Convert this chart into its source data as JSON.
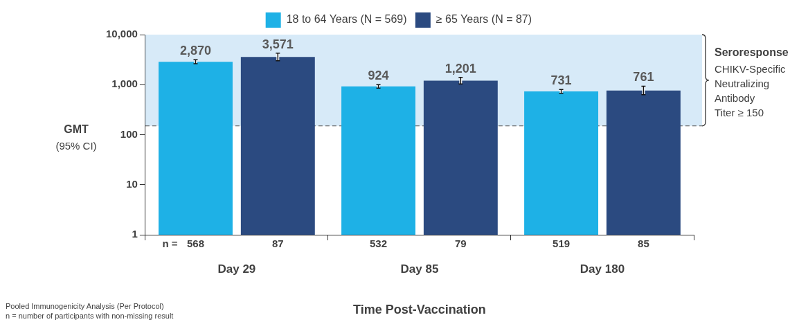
{
  "chart_data": {
    "type": "bar",
    "categories": [
      "Day 29",
      "Day 85",
      "Day 180"
    ],
    "series": [
      {
        "name": "18 to 64 Years (N = 569)",
        "color": "#1eb1e6",
        "values": [
          2870,
          924,
          731
        ],
        "errors": [
          [
            2620,
            3150
          ],
          [
            850,
            1000
          ],
          [
            670,
            800
          ]
        ],
        "value_labels": [
          "2,870",
          "924",
          "731"
        ]
      },
      {
        "name": "≥ 65 Years (N = 87)",
        "color": "#2b4a80",
        "values": [
          3571,
          1201,
          761
        ],
        "errors": [
          [
            3000,
            4250
          ],
          [
            1030,
            1400
          ],
          [
            630,
            930
          ]
        ],
        "value_labels": [
          "3,571",
          "1,201",
          "761"
        ]
      }
    ],
    "log": "y",
    "ylim": [
      1,
      10000
    ],
    "yticks": [
      {
        "value": 1,
        "label": "1"
      },
      {
        "value": 10,
        "label": "10"
      },
      {
        "value": 100,
        "label": "100"
      },
      {
        "value": 1000,
        "label": "1,000"
      },
      {
        "value": 10000,
        "label": "10,000"
      }
    ],
    "ylabel": "GMT\n(95% CI)",
    "xlabel": "Time Post-Vaccination",
    "legend": "top",
    "grid": false,
    "bands": [
      {
        "axis": "y",
        "from": 150,
        "to": 10000,
        "label": "Seroresponse",
        "color": "#d7eaf8"
      }
    ],
    "ref_lines": [
      {
        "axis": "y",
        "value": 150,
        "color": "#555555",
        "line_style": "dashed"
      }
    ],
    "annotations": [
      "CHIKV-Specific\nNeutralizing\nAntibody\nTiter ≥ 150",
      "n =",
      "Pooled Immunogenicity Analysis (Per Protocol)",
      "n = number of participants with non-missing result",
      "568",
      "87",
      "532",
      "79",
      "519",
      "85"
    ]
  }
}
